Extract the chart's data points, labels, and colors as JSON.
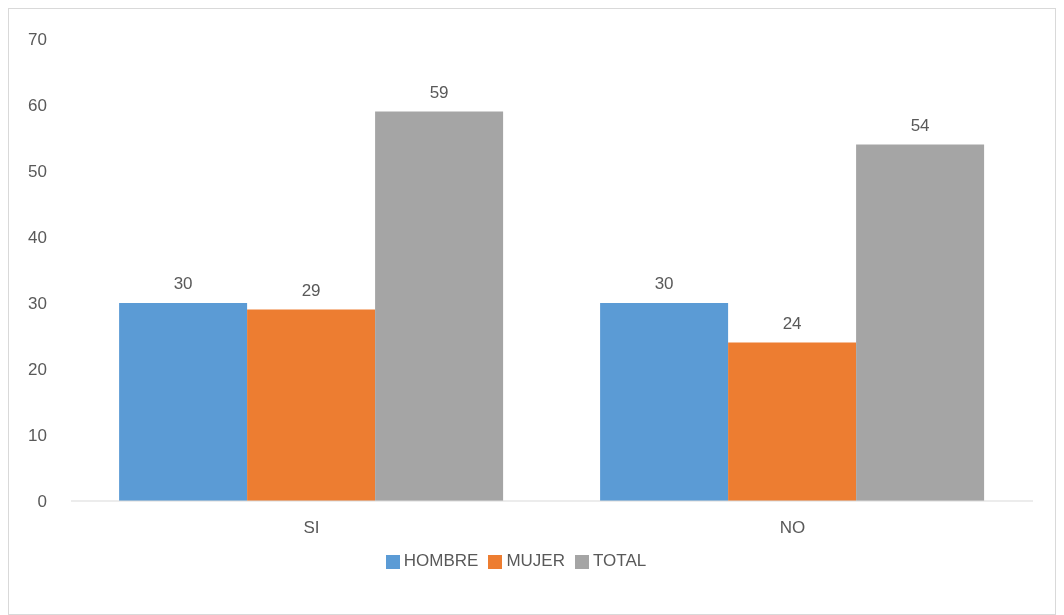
{
  "chart_data": {
    "type": "bar",
    "categories": [
      "SI",
      "NO"
    ],
    "series": [
      {
        "name": "HOMBRE",
        "color": "#5b9bd5",
        "values": [
          30,
          30
        ]
      },
      {
        "name": "MUJER",
        "color": "#ed7d31",
        "values": [
          29,
          24
        ]
      },
      {
        "name": "TOTAL",
        "color": "#a5a5a5",
        "values": [
          59,
          54
        ]
      }
    ],
    "ylim": [
      0,
      70
    ],
    "yticks": [
      0,
      10,
      20,
      30,
      40,
      50,
      60,
      70
    ],
    "grid": false,
    "legend": "bottom",
    "data_labels": true
  }
}
